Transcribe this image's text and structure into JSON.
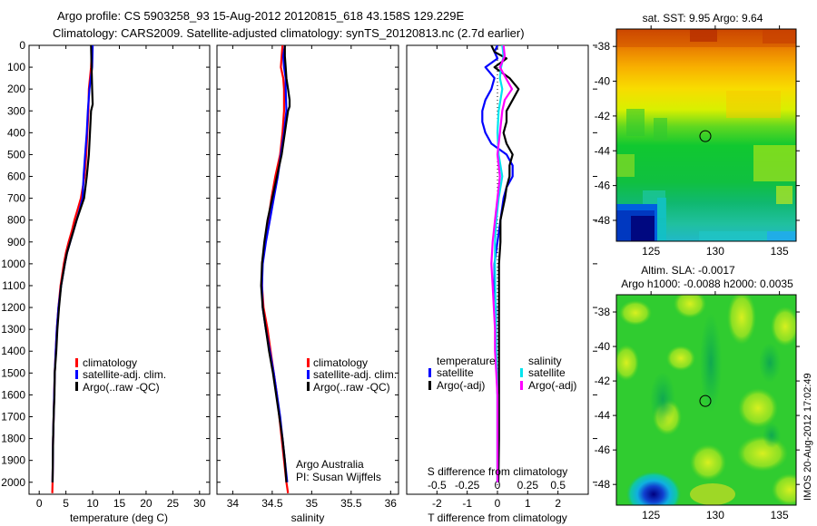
{
  "header": {
    "line1": "Argo profile: CS 5903258_93 15-Aug-2012 20120815_618 43.158S 129.229E",
    "line2": "Climatology: CARS2009. Satellite-adjusted climatology: synTS_20120813.nc (2.7d earlier)"
  },
  "credit": {
    "line1": "Argo Australia",
    "line2": "PI: Susan Wijffels"
  },
  "timestamp": "IMOS 20-Aug-2012 17:02:49",
  "chart_data": [
    {
      "id": "temperature",
      "type": "line",
      "xlabel": "temperature (deg C)",
      "ylabel": "",
      "xlim": [
        -1.9,
        31.9
      ],
      "ylim": [
        2055,
        0
      ],
      "xticks": [
        0,
        5,
        10,
        15,
        20,
        25,
        30
      ],
      "yticks": [
        0,
        100,
        200,
        300,
        400,
        500,
        600,
        700,
        800,
        900,
        1000,
        1100,
        1200,
        1300,
        1400,
        1500,
        1600,
        1700,
        1800,
        1900,
        2000
      ],
      "legend": [
        "climatology",
        "satellite-adj. clim.",
        "Argo(..raw -QC)"
      ],
      "legend_position": "lower-center",
      "series": [
        {
          "name": "climatology",
          "color": "#ff0000",
          "depth": [
            0,
            100,
            200,
            300,
            400,
            500,
            600,
            700,
            750,
            800,
            850,
            900,
            950,
            1000,
            1100,
            1200,
            1300,
            1400,
            1500,
            1600,
            1700,
            1800,
            1900,
            2000,
            2050
          ],
          "values": [
            9.9,
            9.7,
            9.3,
            9.2,
            9.0,
            8.8,
            8.5,
            7.8,
            7.2,
            6.6,
            6.1,
            5.5,
            5.0,
            4.6,
            4.0,
            3.6,
            3.3,
            3.1,
            2.9,
            2.8,
            2.7,
            2.6,
            2.55,
            2.5,
            2.45
          ]
        },
        {
          "name": "satellite-adj. clim.",
          "color": "#0000ff",
          "depth": [
            0,
            100,
            200,
            300,
            400,
            500,
            600,
            700,
            750,
            800,
            850,
            900,
            950,
            1000,
            1100,
            1200,
            1300,
            1400,
            1500,
            1600,
            1700,
            1800,
            1900,
            2000
          ],
          "values": [
            10.0,
            9.9,
            9.4,
            9.1,
            8.9,
            8.6,
            8.3,
            8.1,
            7.6,
            7.0,
            6.4,
            5.8,
            5.2,
            4.8,
            4.1,
            3.6,
            3.3,
            3.1,
            2.9,
            2.8,
            2.7,
            2.6,
            2.55,
            2.5
          ]
        },
        {
          "name": "Argo(..raw -QC)",
          "color": "#000000",
          "depth": [
            0,
            100,
            200,
            270,
            300,
            400,
            500,
            600,
            700,
            750,
            800,
            850,
            900,
            950,
            1000,
            1100,
            1200,
            1300,
            1400,
            1500,
            1600,
            1700,
            1800,
            1900,
            2000
          ],
          "values": [
            9.7,
            9.8,
            9.9,
            10.0,
            9.7,
            9.5,
            9.3,
            8.9,
            8.4,
            7.7,
            7.0,
            6.4,
            5.8,
            5.2,
            4.8,
            4.1,
            3.7,
            3.4,
            3.2,
            2.9,
            2.85,
            2.7,
            2.6,
            2.55,
            2.5
          ]
        }
      ]
    },
    {
      "id": "salinity",
      "type": "line",
      "xlabel": "salinity",
      "xlim": [
        33.8,
        36.1
      ],
      "ylim": [
        2055,
        0
      ],
      "xticks": [
        34,
        34.5,
        35,
        35.5,
        36
      ],
      "legend": [
        "climatology",
        "satellite-adj. clim.",
        "Argo(..raw -QC)"
      ],
      "legend_position": "lower-right",
      "series": [
        {
          "name": "climatology",
          "color": "#ff0000",
          "depth": [
            0,
            50,
            100,
            150,
            200,
            300,
            400,
            500,
            600,
            700,
            800,
            900,
            1000,
            1100,
            1200,
            1300,
            1400,
            1500,
            1600,
            1700,
            1800,
            1900,
            2000,
            2050
          ],
          "values": [
            34.63,
            34.62,
            34.61,
            34.64,
            34.65,
            34.65,
            34.63,
            34.6,
            34.54,
            34.49,
            34.45,
            34.41,
            34.37,
            34.37,
            34.39,
            34.44,
            34.48,
            34.52,
            34.56,
            34.59,
            34.62,
            34.65,
            34.68,
            34.7
          ]
        },
        {
          "name": "satellite-adj. clim.",
          "color": "#0000ff",
          "depth": [
            0,
            50,
            100,
            150,
            200,
            300,
            400,
            500,
            600,
            700,
            800,
            900,
            1000,
            1100,
            1200,
            1300,
            1400,
            1500,
            1600,
            1700,
            1800,
            1900,
            2000
          ],
          "values": [
            34.66,
            34.64,
            34.65,
            34.67,
            34.67,
            34.68,
            34.65,
            34.61,
            34.57,
            34.52,
            34.47,
            34.42,
            34.38,
            34.37,
            34.38,
            34.42,
            34.47,
            34.52,
            34.56,
            34.6,
            34.63,
            34.66,
            34.69
          ]
        },
        {
          "name": "Argo(..raw -QC)",
          "color": "#000000",
          "depth": [
            0,
            50,
            100,
            150,
            200,
            250,
            280,
            300,
            350,
            400,
            500,
            600,
            700,
            800,
            900,
            1000,
            1100,
            1200,
            1300,
            1400,
            1500,
            1600,
            1700,
            1800,
            1900,
            2000
          ],
          "values": [
            34.66,
            34.66,
            34.67,
            34.68,
            34.7,
            34.72,
            34.72,
            34.7,
            34.68,
            34.66,
            34.62,
            34.56,
            34.5,
            34.44,
            34.4,
            34.37,
            34.36,
            34.38,
            34.42,
            34.46,
            34.51,
            34.55,
            34.59,
            34.63,
            34.66,
            34.68
          ]
        }
      ]
    },
    {
      "id": "difference",
      "type": "line",
      "xlabel": "T difference from climatology",
      "xlabel_top": "S difference from climatology",
      "xlim": [
        -3,
        3
      ],
      "ylim": [
        2055,
        0
      ],
      "xticks": [
        -2,
        -1,
        0,
        1,
        2
      ],
      "xticks_s": [
        -0.5,
        -0.25,
        0,
        0.25,
        0.5
      ],
      "s_scale_factor": 4,
      "legend_temperature": {
        "title": "temperature",
        "items": [
          "satellite",
          "Argo(-adj)"
        ]
      },
      "legend_salinity": {
        "title": "salinity",
        "items": [
          "satellite",
          "Argo(-adj)"
        ]
      },
      "series": [
        {
          "name": "temperature satellite",
          "color": "#0000ff",
          "depth": [
            0,
            30,
            60,
            100,
            150,
            200,
            250,
            300,
            350,
            400,
            450,
            500,
            550,
            600,
            650,
            700,
            800,
            900,
            1000,
            1100,
            1200,
            1400,
            1600,
            1800,
            2000
          ],
          "values": [
            0.0,
            -0.1,
            0.0,
            -0.4,
            -0.1,
            -0.2,
            -0.4,
            -0.5,
            -0.5,
            -0.4,
            -0.2,
            0.3,
            0.5,
            0.5,
            0.3,
            0.2,
            0.1,
            0.0,
            -0.1,
            -0.1,
            -0.05,
            -0.05,
            0.0,
            0.0,
            0.0
          ]
        },
        {
          "name": "temperature Argo(-adj)",
          "color": "#000000",
          "depth": [
            0,
            30,
            60,
            100,
            150,
            200,
            250,
            300,
            350,
            400,
            450,
            500,
            550,
            600,
            650,
            700,
            800,
            900,
            1000,
            1100,
            1200,
            1400,
            1600,
            1800,
            2000
          ],
          "values": [
            -0.2,
            -0.1,
            0.3,
            -0.1,
            0.4,
            0.7,
            0.5,
            0.3,
            0.3,
            0.2,
            0.3,
            0.5,
            0.4,
            0.4,
            0.3,
            0.25,
            0.1,
            0.1,
            0.05,
            0.05,
            0.05,
            0.05,
            0.05,
            0.05,
            0.03
          ]
        },
        {
          "name": "salinity satellite",
          "color": "#00e5ee",
          "depth": [
            0,
            50,
            100,
            150,
            200,
            300,
            400,
            500,
            600,
            700,
            800,
            900,
            1000,
            1200,
            1400,
            1600,
            1800,
            2000
          ],
          "values": [
            0.04,
            0.05,
            0.03,
            0.02,
            0.04,
            0.01,
            0.0,
            0.01,
            0.04,
            0.01,
            -0.01,
            -0.02,
            -0.02,
            -0.015,
            -0.01,
            0.0,
            0.0,
            0.0
          ]
        },
        {
          "name": "salinity Argo(-adj)",
          "color": "#ff00ff",
          "depth": [
            0,
            50,
            100,
            150,
            200,
            250,
            300,
            400,
            500,
            600,
            700,
            800,
            900,
            1000,
            1100,
            1200,
            1300,
            1400,
            1500,
            1600,
            1800,
            2000
          ],
          "values": [
            0.05,
            0.06,
            0.02,
            0.07,
            0.12,
            0.06,
            0.04,
            0.02,
            0.0,
            0.02,
            0.0,
            -0.02,
            -0.04,
            -0.05,
            -0.04,
            -0.03,
            -0.02,
            -0.02,
            -0.01,
            0.0,
            0.0,
            0.0
          ]
        }
      ]
    },
    {
      "id": "sst_map",
      "type": "heatmap",
      "title": "sat. SST: 9.95 Argo: 9.64",
      "xlim": [
        122.3,
        136.3
      ],
      "ylim": [
        -49.2,
        -37.0
      ],
      "xticks": [
        125,
        130,
        135
      ],
      "yticks": [
        -38,
        -40,
        -42,
        -44,
        -46,
        -48
      ],
      "marker": {
        "lon": 129.229,
        "lat": -43.158
      },
      "gradient_description": "warm (red/orange) in north ~-37, yellow ~-40, green south of -42, cyan/blue patch in SW corner near 123-126E -48 to -49"
    },
    {
      "id": "sla_map",
      "type": "heatmap",
      "title": "Altim. SLA: -0.0017",
      "subtitle": "Argo h1000: -0.0088 h2000: 0.0035",
      "xlim": [
        122.3,
        136.3
      ],
      "ylim": [
        -49.2,
        -37.0
      ],
      "xticks": [
        125,
        130,
        135
      ],
      "yticks": [
        -38,
        -40,
        -42,
        -44,
        -46,
        -48
      ],
      "marker": {
        "lon": 129.229,
        "lat": -43.158
      },
      "gradient_description": "mostly green/yellow-green mottled, blue eddy at ~125E -48.5"
    }
  ]
}
